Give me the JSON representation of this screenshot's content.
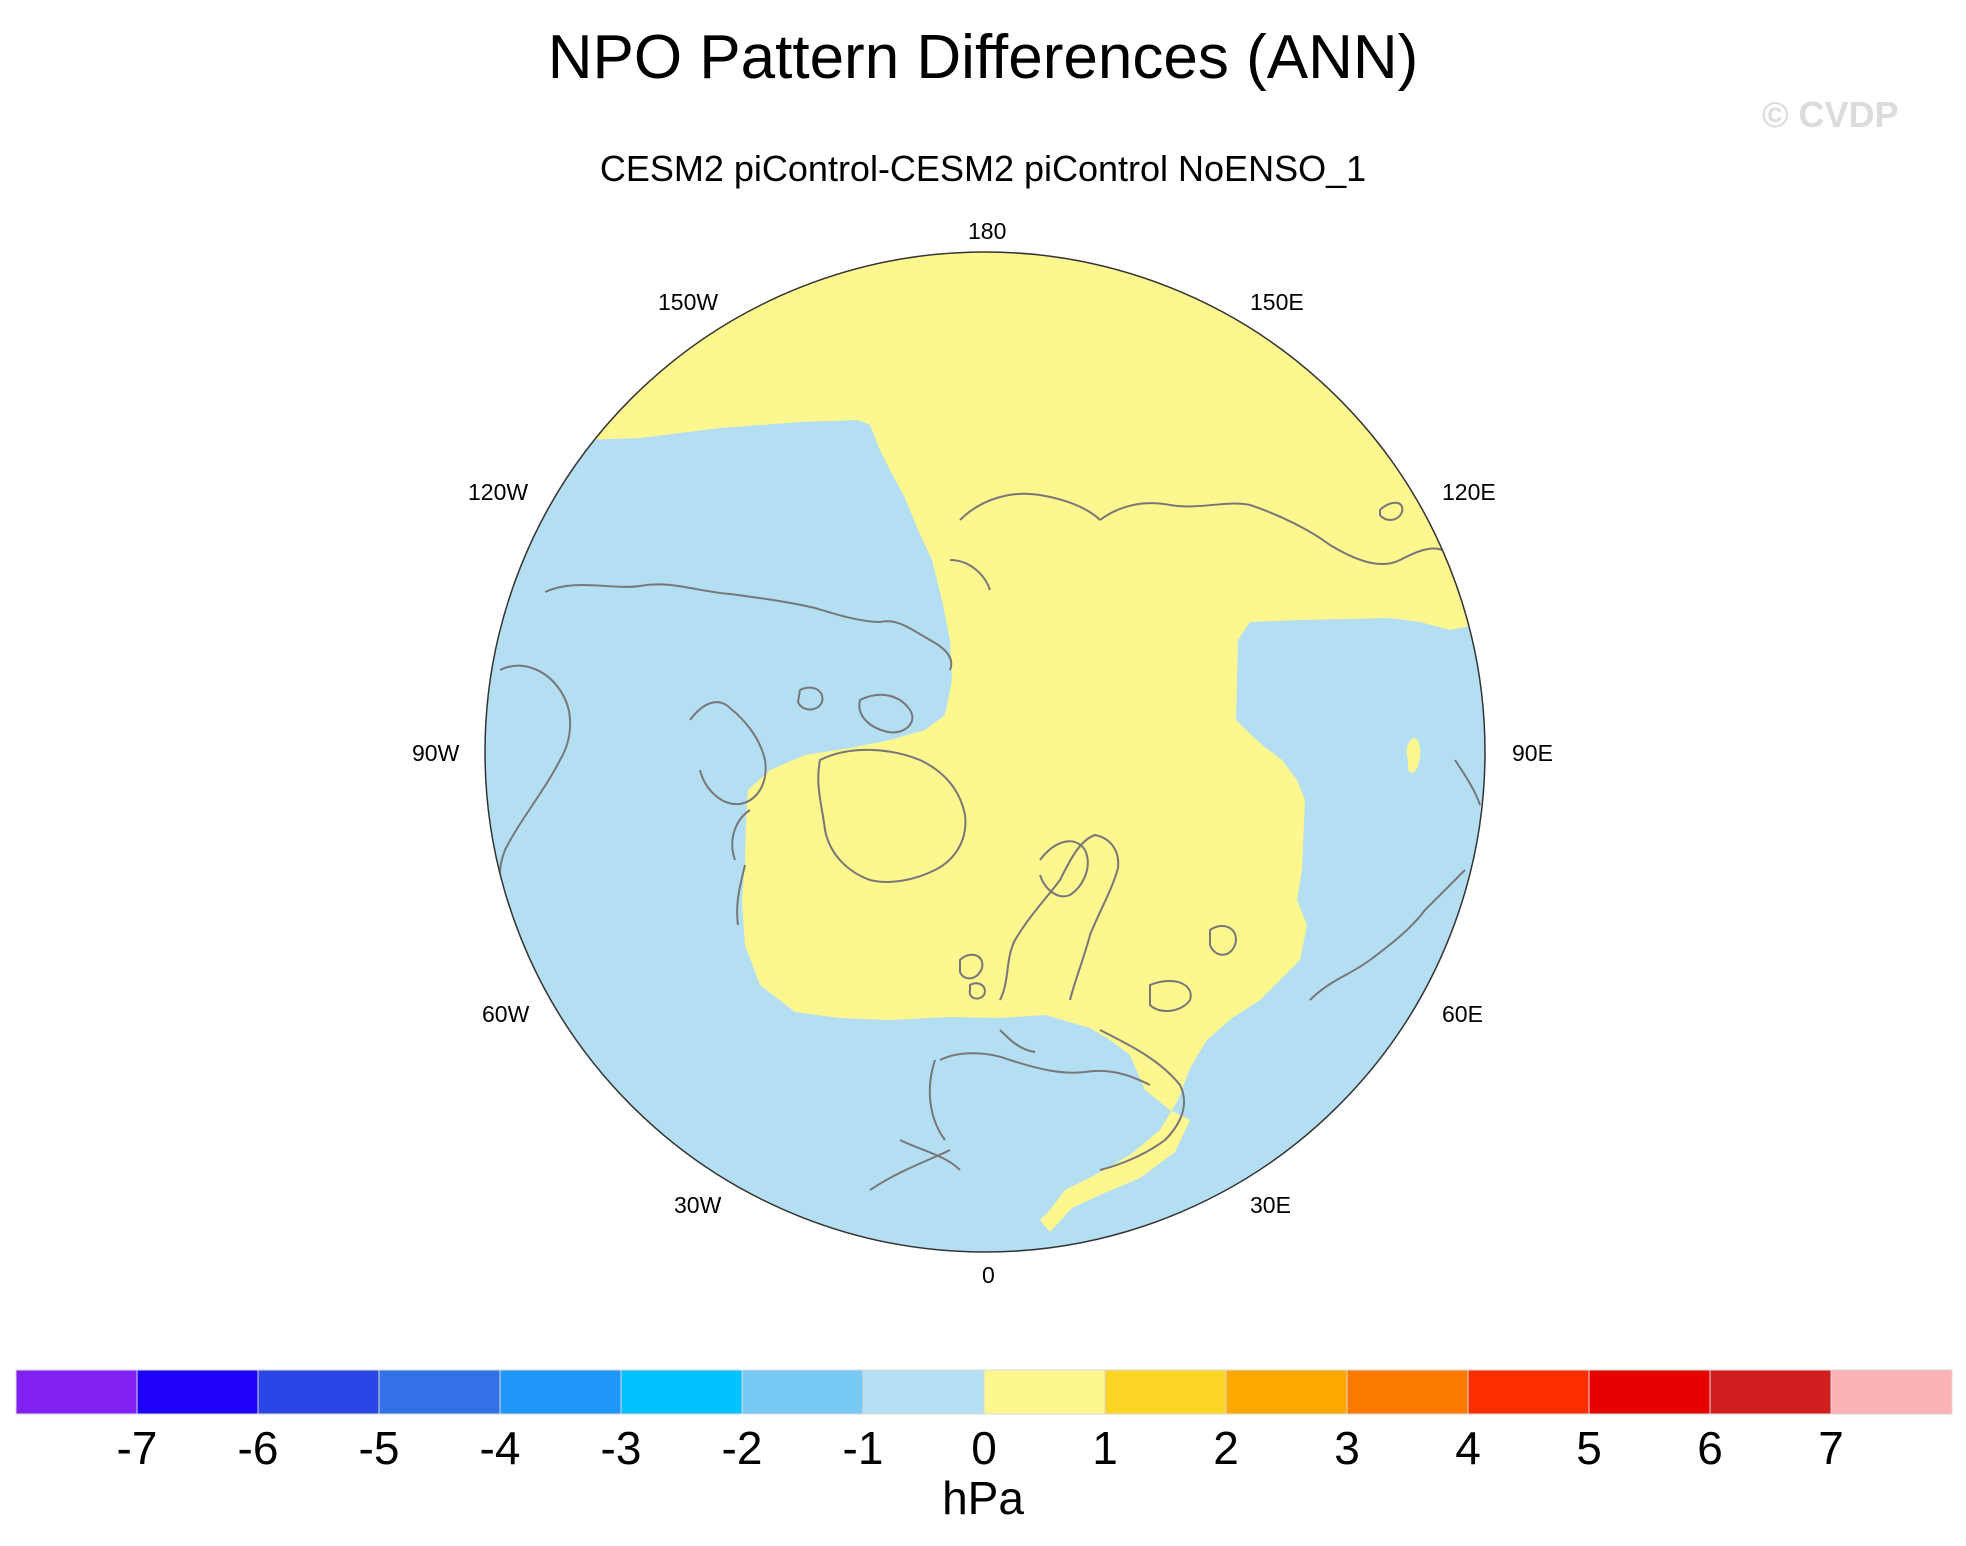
{
  "title": "NPO Pattern Differences (ANN)",
  "subtitle": "CESM2 piControl-CESM2 piControl NoENSO_1",
  "watermark": "© CVDP",
  "map": {
    "projection": "north polar stereographic",
    "longitude_labels": [
      "180",
      "150E",
      "120E",
      "90E",
      "60E",
      "30E",
      "0",
      "30W",
      "60W",
      "90W",
      "120W",
      "150W"
    ],
    "field_levels_shown": {
      "positive_0_to_1": "#FEF790",
      "negative_-1_to_0": "#B4DFF2"
    }
  },
  "colorbar": {
    "colors": [
      "#8121F2",
      "#1E00FB",
      "#2B46E7",
      "#3271E8",
      "#1E96FA",
      "#00C3FD",
      "#78C9F3",
      "#B4DFF2",
      "#FEF790",
      "#FCD424",
      "#FDA800",
      "#FC7A00",
      "#FE2E00",
      "#E60000",
      "#D11E1F",
      "#FDB3B5"
    ],
    "labels": [
      "-7",
      "-6",
      "-5",
      "-4",
      "-3",
      "-2",
      "-1",
      "0",
      "1",
      "2",
      "3",
      "4",
      "5",
      "6",
      "7"
    ],
    "units": "hPa"
  }
}
